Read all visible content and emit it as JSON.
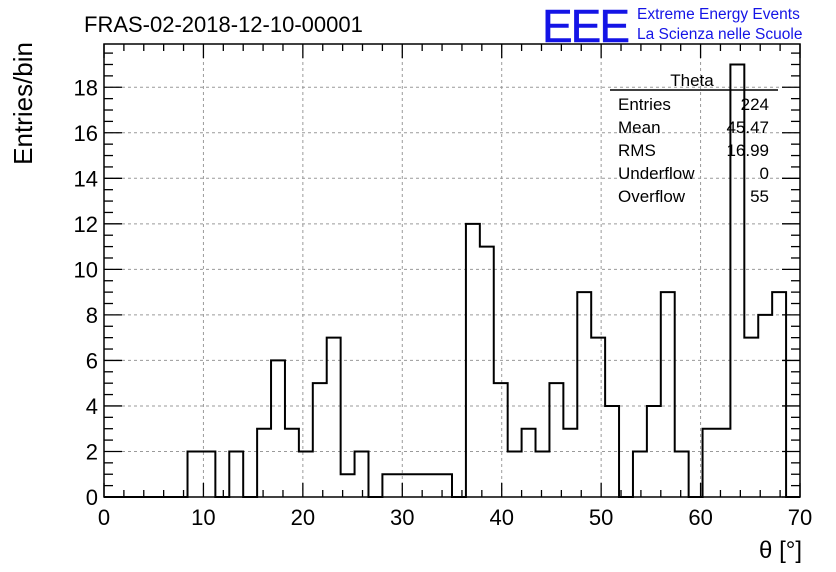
{
  "chart_data": {
    "type": "histogram",
    "title": "FRAS-02-2018-12-10-00001",
    "xlabel": "θ [°]",
    "ylabel": "Entries/bin",
    "xlim": [
      0,
      70
    ],
    "ylim": [
      0,
      19.9
    ],
    "x_ticks": [
      0,
      10,
      20,
      30,
      40,
      50,
      60,
      70
    ],
    "y_ticks": [
      0,
      2,
      4,
      6,
      8,
      10,
      12,
      14,
      16,
      18
    ],
    "grid": true,
    "bin_width": 1.4,
    "bin_edges_start": 0,
    "counts": [
      0,
      0,
      0,
      0,
      0,
      0,
      2,
      2,
      0,
      2,
      0,
      3,
      6,
      3,
      2,
      5,
      7,
      1,
      2,
      0,
      1,
      1,
      1,
      1,
      1,
      0,
      12,
      11,
      5,
      2,
      3,
      2,
      5,
      3,
      9,
      7,
      4,
      0,
      2,
      4,
      9,
      2,
      0,
      3,
      3,
      19,
      7,
      8,
      9,
      0
    ],
    "legend_position": "top-right"
  },
  "stats_box": {
    "name": "Theta",
    "rows": [
      {
        "label": "Entries",
        "value": "224"
      },
      {
        "label": "Mean",
        "value": "45.47"
      },
      {
        "label": "RMS",
        "value": "16.99"
      },
      {
        "label": "Underflow",
        "value": "0"
      },
      {
        "label": "Overflow",
        "value": "55"
      }
    ]
  },
  "logo": {
    "mark": "EEE",
    "line1": "Extreme Energy Events",
    "line2": "La Scienza nelle Scuole",
    "color": "#1414e6"
  }
}
